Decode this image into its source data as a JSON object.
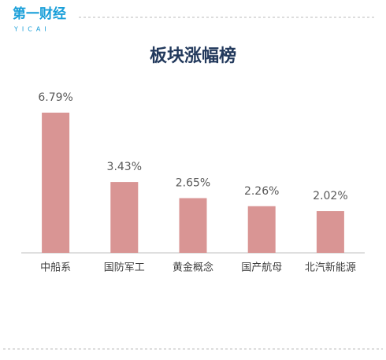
{
  "logo": {
    "name": "第一财经",
    "sub": "YICAI"
  },
  "chart_data": {
    "type": "bar",
    "title": "板块涨幅榜",
    "categories": [
      "中船系",
      "国防军工",
      "黄金概念",
      "国产航母",
      "北汽新能源"
    ],
    "values": [
      6.79,
      3.43,
      2.65,
      2.26,
      2.02
    ],
    "value_labels": [
      "6.79%",
      "3.43%",
      "2.65%",
      "2.26%",
      "2.02%"
    ],
    "color": "#d99594"
  }
}
